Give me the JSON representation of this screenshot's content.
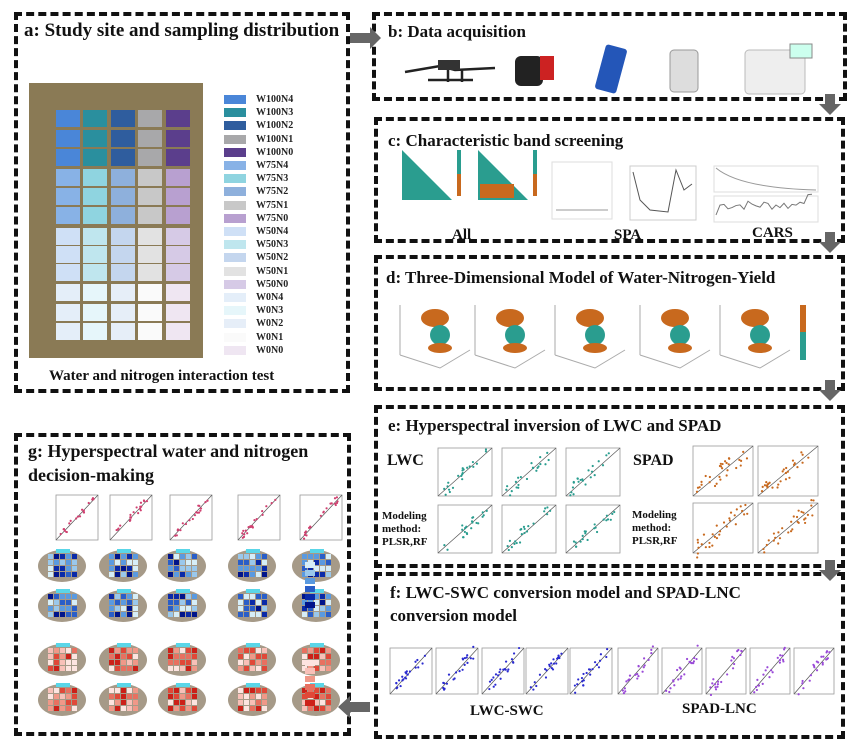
{
  "panels": {
    "a": {
      "title": "a: Study site and sampling distribution",
      "caption": "Water and nitrogen interaction test"
    },
    "b": {
      "title": "b: Data acquisition",
      "instruments": [
        "drone-icon",
        "hyperspectral-camera-icon",
        "handheld-meter-icon",
        "chlorophyll-meter-icon",
        "lab-analyzer-icon"
      ]
    },
    "c": {
      "title": "c: Characteristic band screening",
      "labels": [
        "All",
        "SPA",
        "CARS"
      ]
    },
    "d": {
      "title": "d: Three-Dimensional Model of Water-Nitrogen-Yield"
    },
    "e": {
      "title": "e: Hyperspectral inversion of LWC and SPAD",
      "left_label": "LWC",
      "right_label": "SPAD",
      "method_left": "Modeling method: PLSR,RF",
      "method_right": "Modeling method: PLSR,RF"
    },
    "f": {
      "title_line1": "f: LWC-SWC conversion model and SPAD-LNC",
      "title_line2": "conversion model",
      "left_label": "LWC-SWC",
      "right_label": "SPAD-LNC"
    },
    "g": {
      "title_line1": "g: Hyperspectral water and nitrogen",
      "title_line2": "decision-making"
    }
  },
  "legend": [
    {
      "name": "W100N4",
      "color": "#4a86d8"
    },
    {
      "name": "W100N3",
      "color": "#2a8f9e"
    },
    {
      "name": "W100N2",
      "color": "#2f5d9e"
    },
    {
      "name": "W100N1",
      "color": "#a8a8aa"
    },
    {
      "name": "W100N0",
      "color": "#5b3e8c"
    },
    {
      "name": "W75N4",
      "color": "#88b2e6"
    },
    {
      "name": "W75N3",
      "color": "#8fd4e0"
    },
    {
      "name": "W75N2",
      "color": "#8eb0dc"
    },
    {
      "name": "W75N1",
      "color": "#c8c8c8"
    },
    {
      "name": "W75N0",
      "color": "#b8a0d0"
    },
    {
      "name": "W50N4",
      "color": "#cfe0f6"
    },
    {
      "name": "W50N3",
      "color": "#bfe6ee"
    },
    {
      "name": "W50N2",
      "color": "#c4d6ee"
    },
    {
      "name": "W50N1",
      "color": "#e2e2e2"
    },
    {
      "name": "W50N0",
      "color": "#d6cae6"
    },
    {
      "name": "W0N4",
      "color": "#e4eef9"
    },
    {
      "name": "W0N3",
      "color": "#e6f6fa"
    },
    {
      "name": "W0N2",
      "color": "#e6eef8"
    },
    {
      "name": "W0N1",
      "color": "#fafafa"
    },
    {
      "name": "W0N0",
      "color": "#efe6f2"
    }
  ],
  "colors": {
    "field": "#8a7a55",
    "teal": "#2a9d8f",
    "orange": "#c8691e",
    "blue_scatter": "#2a2ad0",
    "purple_scatter": "#9a4ad8",
    "red_scatter": "#d04070",
    "arrow": "#666666"
  }
}
